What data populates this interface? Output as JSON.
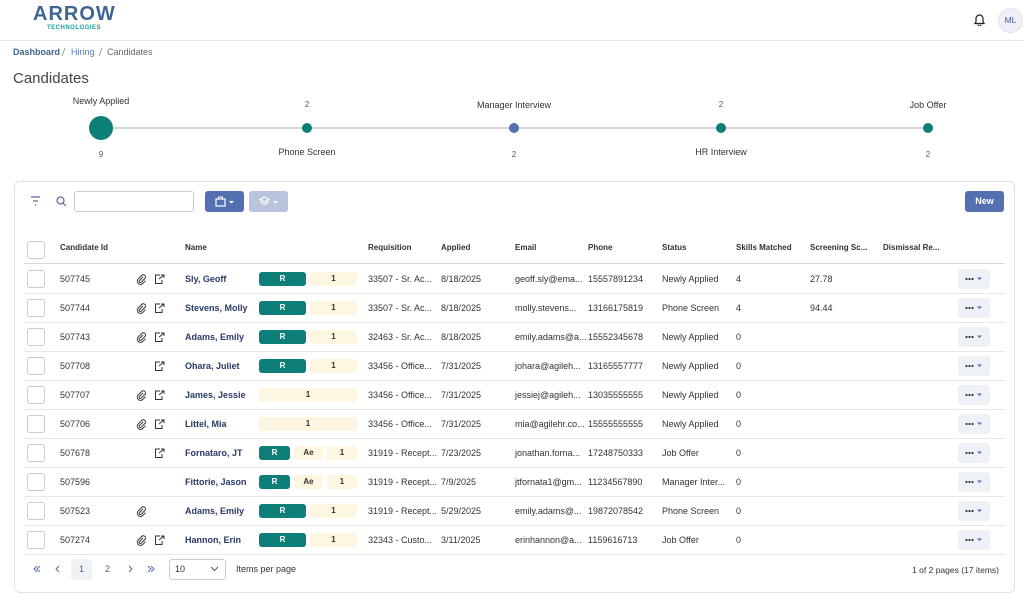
{
  "header": {
    "logo_title": "ARROW",
    "logo_subtitle": "TECHNOLOGIES",
    "user_initials": "ML"
  },
  "breadcrumb": [
    "Dashboard",
    "Hiring",
    "Candidates"
  ],
  "page_title": "Candidates",
  "pipeline": {
    "stages": [
      {
        "label": "Newly Applied",
        "count": 9
      },
      {
        "label": "Phone Screen",
        "count": 2
      },
      {
        "label": "Manager Interview",
        "count": 2
      },
      {
        "label": "HR Interview",
        "count": 2
      },
      {
        "label": "Job Offer",
        "count": 2
      }
    ]
  },
  "toolbar": {
    "new_button": "New"
  },
  "table": {
    "columns": [
      "Candidate Id",
      "Name",
      "Requisition",
      "Applied",
      "Email",
      "Phone",
      "Status",
      "Skills Matched",
      "Screening Sc...",
      "Dismissal Re..."
    ],
    "rows": [
      {
        "id": "507745",
        "attachment": true,
        "document": true,
        "name": "Sly, Geoff",
        "badges": [
          "R",
          "1"
        ],
        "requisition": "33507 - Sr. Ac...",
        "applied": "8/18/2025",
        "email": "geoff.sly@ema...",
        "phone": "15557891234",
        "status": "Newly Applied",
        "skills": 4,
        "score": 27.78
      },
      {
        "id": "507744",
        "attachment": true,
        "document": true,
        "name": "Stevens, Molly",
        "badges": [
          "R",
          "1"
        ],
        "requisition": "33507 - Sr. Ac...",
        "applied": "8/18/2025",
        "email": "molly.stevens...",
        "phone": "13166175819",
        "status": "Phone Screen",
        "skills": 4,
        "score": 94.44
      },
      {
        "id": "507743",
        "attachment": true,
        "document": true,
        "name": "Adams, Emily",
        "badges": [
          "R",
          "1"
        ],
        "requisition": "32463 - Sr. Ac...",
        "applied": "8/18/2025",
        "email": "emily.adams@a...",
        "phone": "15552345678",
        "status": "Newly Applied",
        "skills": 0
      },
      {
        "id": "507708",
        "attachment": false,
        "document": true,
        "name": "Ohara, Juliet",
        "badges": [
          "R",
          "1"
        ],
        "requisition": "33456 - Office...",
        "applied": "7/31/2025",
        "email": "johara@agileh...",
        "phone": "13165557777",
        "status": "Newly Applied",
        "skills": 0
      },
      {
        "id": "507707",
        "attachment": true,
        "document": true,
        "name": "James, Jessie",
        "badges": [
          "1"
        ],
        "requisition": "33456 - Office...",
        "applied": "7/31/2025",
        "email": "jessiej@agileh...",
        "phone": "13035555555",
        "status": "Newly Applied",
        "skills": 0
      },
      {
        "id": "507706",
        "attachment": true,
        "document": true,
        "name": "Littel, Mia",
        "badges": [
          "1"
        ],
        "requisition": "33456 - Office...",
        "applied": "7/31/2025",
        "email": "mia@agilehr.co...",
        "phone": "15555555555",
        "status": "Newly Applied",
        "skills": 0
      },
      {
        "id": "507678",
        "attachment": false,
        "document": true,
        "name": "Fornataro, JT",
        "badges": [
          "R",
          "Ae",
          "1"
        ],
        "requisition": "31919 - Recept...",
        "applied": "7/23/2025",
        "email": "jonathan.forna...",
        "phone": "17248750333",
        "status": "Job Offer",
        "skills": 0
      },
      {
        "id": "507596",
        "attachment": false,
        "document": false,
        "name": "Fittorie, Jason",
        "badges": [
          "R",
          "Ae",
          "1"
        ],
        "requisition": "31919 - Recept...",
        "applied": "7/9/2025",
        "email": "jtfornata1@gm...",
        "phone": "11234567890",
        "status": "Manager Inter...",
        "skills": 0
      },
      {
        "id": "507523",
        "attachment": true,
        "document": false,
        "name": "Adams, Emily",
        "badges": [
          "R",
          "1"
        ],
        "requisition": "31919 - Recept...",
        "applied": "5/29/2025",
        "email": "emily.adams@...",
        "phone": "19872078542",
        "status": "Phone Screen",
        "skills": 0
      },
      {
        "id": "507274",
        "attachment": true,
        "document": true,
        "name": "Hannon, Erin",
        "badges": [
          "R",
          "1"
        ],
        "requisition": "32343 - Custo...",
        "applied": "3/11/2025",
        "email": "erinhannon@a...",
        "phone": "1159616713",
        "status": "Job Offer",
        "skills": 0
      }
    ]
  },
  "pagination": {
    "pages": [
      1,
      2
    ],
    "page_size": 10,
    "page_size_label": "Items per page",
    "summary": "1 of 2 pages (17 items)"
  }
}
